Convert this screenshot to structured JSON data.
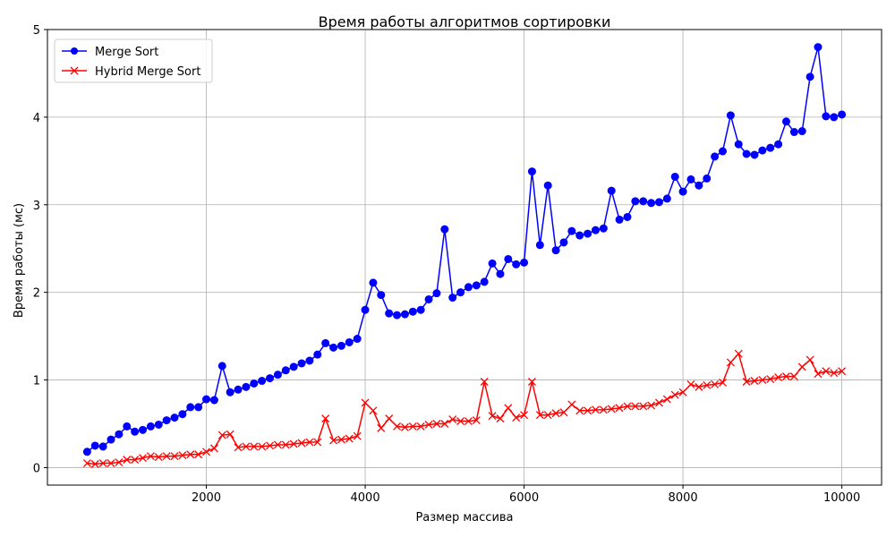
{
  "chart_data": {
    "type": "line",
    "title": "Время работы алгоритмов сортировки",
    "xlabel": "Размер массива",
    "ylabel": "Время работы (мс)",
    "xlim": [
      0,
      10500
    ],
    "ylim": [
      -0.2,
      5
    ],
    "xticks": [
      2000,
      4000,
      6000,
      8000,
      10000
    ],
    "yticks": [
      0,
      1,
      2,
      3,
      4,
      5
    ],
    "grid": true,
    "legend_position": "top-left",
    "x": [
      500,
      600,
      700,
      800,
      900,
      1000,
      1100,
      1200,
      1300,
      1400,
      1500,
      1600,
      1700,
      1800,
      1900,
      2000,
      2100,
      2200,
      2300,
      2400,
      2500,
      2600,
      2700,
      2800,
      2900,
      3000,
      3100,
      3200,
      3300,
      3400,
      3500,
      3600,
      3700,
      3800,
      3900,
      4000,
      4100,
      4200,
      4300,
      4400,
      4500,
      4600,
      4700,
      4800,
      4900,
      5000,
      5100,
      5200,
      5300,
      5400,
      5500,
      5600,
      5700,
      5800,
      5900,
      6000,
      6100,
      6200,
      6300,
      6400,
      6500,
      6600,
      6700,
      6800,
      6900,
      7000,
      7100,
      7200,
      7300,
      7400,
      7500,
      7600,
      7700,
      7800,
      7900,
      8000,
      8100,
      8200,
      8300,
      8400,
      8500,
      8600,
      8700,
      8800,
      8900,
      9000,
      9100,
      9200,
      9300,
      9400,
      9500,
      9600,
      9700,
      9800,
      9900,
      10000
    ],
    "series": [
      {
        "name": "Merge Sort",
        "color": "#0000ff",
        "marker": "circle",
        "values": [
          0.18,
          0.25,
          0.24,
          0.32,
          0.38,
          0.47,
          0.41,
          0.43,
          0.47,
          0.49,
          0.54,
          0.57,
          0.61,
          0.69,
          0.69,
          0.78,
          0.77,
          1.16,
          0.86,
          0.89,
          0.92,
          0.96,
          0.99,
          1.02,
          1.06,
          1.11,
          1.15,
          1.19,
          1.22,
          1.29,
          1.42,
          1.37,
          1.39,
          1.43,
          1.47,
          1.8,
          2.11,
          1.97,
          1.76,
          1.74,
          1.75,
          1.78,
          1.8,
          1.92,
          1.99,
          2.72,
          1.94,
          2.0,
          2.06,
          2.08,
          2.12,
          2.33,
          2.21,
          2.38,
          2.32,
          2.34,
          3.38,
          2.54,
          3.22,
          2.48,
          2.57,
          2.7,
          2.65,
          2.67,
          2.71,
          2.73,
          3.16,
          2.83,
          2.86,
          3.04,
          3.04,
          3.02,
          3.03,
          3.07,
          3.32,
          3.15,
          3.29,
          3.22,
          3.3,
          3.55,
          3.61,
          4.02,
          3.69,
          3.58,
          3.57,
          3.62,
          3.65,
          3.69,
          3.95,
          3.83,
          3.84,
          4.46,
          4.8,
          4.01,
          4.0,
          4.03
        ]
      },
      {
        "name": "Hybrid Merge Sort",
        "color": "#ff0000",
        "marker": "x",
        "values": [
          0.05,
          0.04,
          0.05,
          0.05,
          0.06,
          0.09,
          0.09,
          0.11,
          0.13,
          0.12,
          0.13,
          0.13,
          0.14,
          0.15,
          0.15,
          0.18,
          0.22,
          0.37,
          0.38,
          0.23,
          0.24,
          0.24,
          0.24,
          0.25,
          0.26,
          0.26,
          0.27,
          0.28,
          0.29,
          0.29,
          0.56,
          0.31,
          0.32,
          0.33,
          0.36,
          0.74,
          0.65,
          0.45,
          0.56,
          0.47,
          0.46,
          0.47,
          0.47,
          0.49,
          0.5,
          0.5,
          0.55,
          0.53,
          0.53,
          0.54,
          0.98,
          0.59,
          0.56,
          0.68,
          0.57,
          0.6,
          0.98,
          0.6,
          0.6,
          0.62,
          0.63,
          0.72,
          0.65,
          0.65,
          0.66,
          0.66,
          0.67,
          0.68,
          0.7,
          0.7,
          0.7,
          0.71,
          0.74,
          0.78,
          0.83,
          0.86,
          0.95,
          0.92,
          0.94,
          0.95,
          0.97,
          1.2,
          1.3,
          0.98,
          0.99,
          1.0,
          1.01,
          1.03,
          1.04,
          1.04,
          1.15,
          1.23,
          1.07,
          1.1,
          1.08,
          1.1
        ]
      }
    ]
  }
}
